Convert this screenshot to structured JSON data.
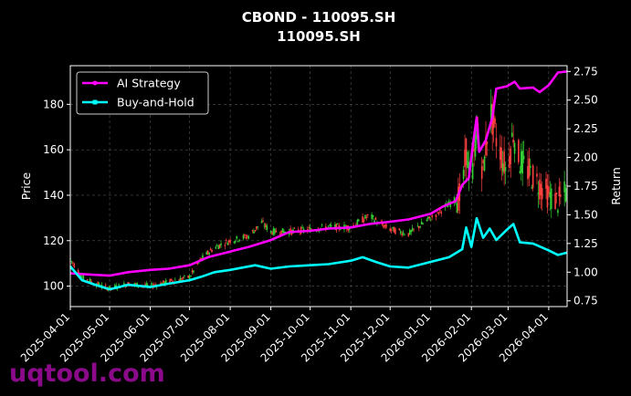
{
  "chart_data": {
    "type": "line",
    "title": "CBOND - 110095.SH",
    "subtitle": "110095.SH",
    "ylabel_left": "Price",
    "ylabel_right": "Return",
    "xlim": [
      "2025-04-01",
      "2026-04-15"
    ],
    "ylim_left": [
      91,
      197
    ],
    "ylim_right": [
      0.7,
      2.8
    ],
    "grid": true,
    "legend_position": "top-left",
    "x_ticks": [
      "2025-04-01",
      "2025-05-01",
      "2025-06-01",
      "2025-07-01",
      "2025-08-01",
      "2025-09-01",
      "2025-10-01",
      "2025-11-01",
      "2025-12-01",
      "2026-01-01",
      "2026-02-01",
      "2026-03-01",
      "2026-04-01"
    ],
    "y_ticks_left": [
      100,
      120,
      140,
      160,
      180
    ],
    "y_ticks_right": [
      "0.75",
      "1.00",
      "1.25",
      "1.50",
      "1.75",
      "2.00",
      "2.25",
      "2.50",
      "2.75"
    ],
    "price_points": [
      [
        "2025-04-01",
        112
      ],
      [
        "2025-04-10",
        104
      ],
      [
        "2025-04-20",
        101
      ],
      [
        "2025-05-01",
        99
      ],
      [
        "2025-05-15",
        101
      ],
      [
        "2025-06-01",
        100
      ],
      [
        "2025-06-15",
        102
      ],
      [
        "2025-07-01",
        104
      ],
      [
        "2025-07-10",
        112
      ],
      [
        "2025-07-20",
        117
      ],
      [
        "2025-08-01",
        120
      ],
      [
        "2025-08-15",
        122
      ],
      [
        "2025-08-25",
        128
      ],
      [
        "2025-09-01",
        124
      ],
      [
        "2025-09-15",
        124
      ],
      [
        "2025-10-01",
        125
      ],
      [
        "2025-10-15",
        126
      ],
      [
        "2025-11-01",
        126
      ],
      [
        "2025-11-15",
        131
      ],
      [
        "2025-11-25",
        127
      ],
      [
        "2025-12-01",
        125
      ],
      [
        "2025-12-15",
        123
      ],
      [
        "2026-01-01",
        130
      ],
      [
        "2026-01-15",
        136
      ],
      [
        "2026-01-25",
        140
      ],
      [
        "2026-01-28",
        160
      ],
      [
        "2026-02-01",
        142
      ],
      [
        "2026-02-05",
        170
      ],
      [
        "2026-02-10",
        150
      ],
      [
        "2026-02-15",
        178
      ],
      [
        "2026-02-20",
        165
      ],
      [
        "2026-02-28",
        150
      ],
      [
        "2026-03-05",
        168
      ],
      [
        "2026-03-10",
        155
      ],
      [
        "2026-03-20",
        148
      ],
      [
        "2026-04-01",
        140
      ],
      [
        "2026-04-08",
        137
      ],
      [
        "2026-04-15",
        142
      ]
    ],
    "series": [
      {
        "name": "AI Strategy",
        "color": "#ff00ff",
        "points": [
          [
            "2025-04-01",
            0.99
          ],
          [
            "2025-04-15",
            0.98
          ],
          [
            "2025-05-01",
            0.97
          ],
          [
            "2025-05-15",
            1.0
          ],
          [
            "2025-06-01",
            1.02
          ],
          [
            "2025-06-15",
            1.03
          ],
          [
            "2025-07-01",
            1.06
          ],
          [
            "2025-07-15",
            1.13
          ],
          [
            "2025-08-01",
            1.18
          ],
          [
            "2025-08-15",
            1.22
          ],
          [
            "2025-09-01",
            1.28
          ],
          [
            "2025-09-15",
            1.35
          ],
          [
            "2025-10-01",
            1.36
          ],
          [
            "2025-10-15",
            1.38
          ],
          [
            "2025-11-01",
            1.39
          ],
          [
            "2025-11-15",
            1.42
          ],
          [
            "2025-12-01",
            1.44
          ],
          [
            "2025-12-15",
            1.46
          ],
          [
            "2026-01-01",
            1.51
          ],
          [
            "2026-01-10",
            1.57
          ],
          [
            "2026-01-20",
            1.62
          ],
          [
            "2026-01-25",
            1.76
          ],
          [
            "2026-01-30",
            1.82
          ],
          [
            "2026-02-02",
            2.1
          ],
          [
            "2026-02-05",
            2.35
          ],
          [
            "2026-02-07",
            2.05
          ],
          [
            "2026-02-12",
            2.15
          ],
          [
            "2026-02-17",
            2.35
          ],
          [
            "2026-02-20",
            2.6
          ],
          [
            "2026-02-28",
            2.62
          ],
          [
            "2026-03-06",
            2.66
          ],
          [
            "2026-03-10",
            2.6
          ],
          [
            "2026-03-20",
            2.61
          ],
          [
            "2026-03-25",
            2.57
          ],
          [
            "2026-04-01",
            2.63
          ],
          [
            "2026-04-08",
            2.74
          ],
          [
            "2026-04-15",
            2.75
          ]
        ]
      },
      {
        "name": "Buy-and-Hold",
        "color": "#00ffff",
        "points": [
          [
            "2025-04-01",
            1.05
          ],
          [
            "2025-04-10",
            0.93
          ],
          [
            "2025-04-20",
            0.89
          ],
          [
            "2025-05-01",
            0.85
          ],
          [
            "2025-05-15",
            0.89
          ],
          [
            "2025-06-01",
            0.87
          ],
          [
            "2025-06-15",
            0.9
          ],
          [
            "2025-07-01",
            0.93
          ],
          [
            "2025-07-10",
            0.96
          ],
          [
            "2025-07-20",
            1.0
          ],
          [
            "2025-08-01",
            1.02
          ],
          [
            "2025-08-20",
            1.06
          ],
          [
            "2025-09-01",
            1.03
          ],
          [
            "2025-09-15",
            1.05
          ],
          [
            "2025-10-01",
            1.06
          ],
          [
            "2025-10-15",
            1.07
          ],
          [
            "2025-11-01",
            1.1
          ],
          [
            "2025-11-10",
            1.13
          ],
          [
            "2025-11-20",
            1.09
          ],
          [
            "2025-12-01",
            1.05
          ],
          [
            "2025-12-15",
            1.04
          ],
          [
            "2026-01-01",
            1.09
          ],
          [
            "2026-01-15",
            1.13
          ],
          [
            "2026-01-25",
            1.2
          ],
          [
            "2026-01-28",
            1.39
          ],
          [
            "2026-02-01",
            1.22
          ],
          [
            "2026-02-05",
            1.47
          ],
          [
            "2026-02-10",
            1.3
          ],
          [
            "2026-02-15",
            1.38
          ],
          [
            "2026-02-20",
            1.28
          ],
          [
            "2026-02-28",
            1.37
          ],
          [
            "2026-03-05",
            1.42
          ],
          [
            "2026-03-10",
            1.26
          ],
          [
            "2026-03-20",
            1.25
          ],
          [
            "2026-04-01",
            1.19
          ],
          [
            "2026-04-08",
            1.15
          ],
          [
            "2026-04-15",
            1.17
          ]
        ]
      }
    ],
    "candle_colors": {
      "up": "#32cd32",
      "down": "#ff4040"
    }
  },
  "watermark": "uqtool.com"
}
